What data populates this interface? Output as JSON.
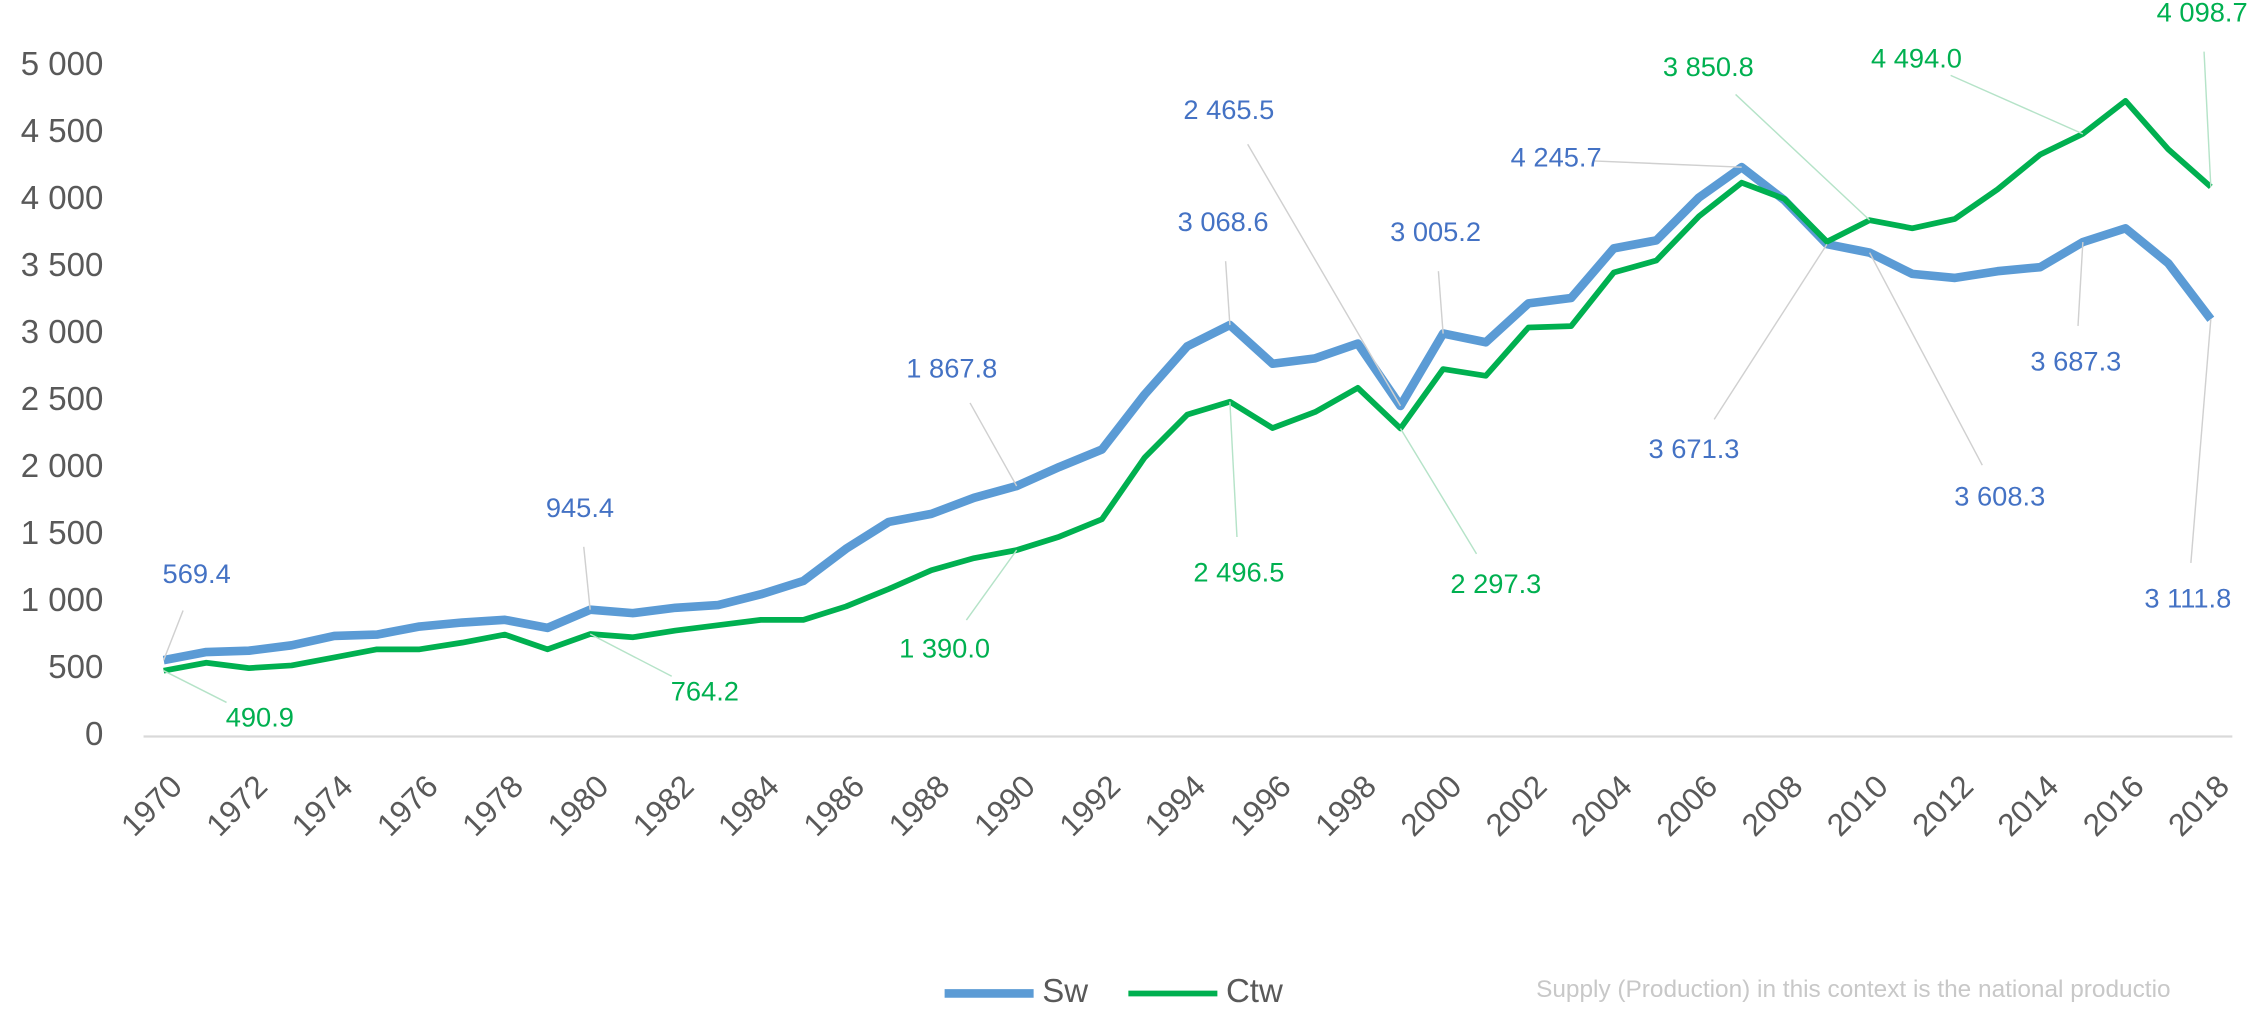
{
  "chart_data": {
    "type": "line",
    "x": [
      1970,
      1971,
      1972,
      1973,
      1974,
      1975,
      1976,
      1977,
      1978,
      1979,
      1980,
      1981,
      1982,
      1983,
      1984,
      1985,
      1986,
      1987,
      1988,
      1989,
      1990,
      1991,
      1992,
      1993,
      1994,
      1995,
      1996,
      1997,
      1998,
      1999,
      2000,
      2001,
      2002,
      2003,
      2004,
      2005,
      2006,
      2007,
      2008,
      2009,
      2010,
      2011,
      2012,
      2013,
      2014,
      2015,
      2016,
      2017,
      2018
    ],
    "xlim": [
      1970,
      2018
    ],
    "xticks": [
      1970,
      1972,
      1974,
      1976,
      1978,
      1980,
      1982,
      1984,
      1986,
      1988,
      1990,
      1992,
      1994,
      1996,
      1998,
      2000,
      2002,
      2004,
      2006,
      2008,
      2010,
      2012,
      2014,
      2016,
      2018
    ],
    "ylim": [
      0,
      5000
    ],
    "yticks": [
      0,
      500,
      {
        "value": 1000,
        "label": "1 000"
      },
      {
        "value": 1500,
        "label": "1 500"
      },
      {
        "value": 2000,
        "label": "2 000"
      },
      {
        "value": 2500,
        "label": "2 500"
      },
      {
        "value": 3000,
        "label": "3 000"
      },
      {
        "value": 3500,
        "label": "3 500"
      },
      {
        "value": 4000,
        "label": "4 000"
      },
      {
        "value": 4500,
        "label": "4 500"
      },
      {
        "value": 5000,
        "label": "5 000"
      }
    ],
    "grid": false,
    "legend": "bottom",
    "series": [
      {
        "name": "Sw",
        "color": "#5b9bd5",
        "label_color": "#4472c4",
        "values": [
          569.4,
          630,
          640,
          680,
          750,
          760,
          820,
          850,
          870,
          810,
          945.4,
          920,
          960,
          980,
          1060,
          1160,
          1400,
          1600,
          1660,
          1780,
          1867.8,
          2010,
          2140,
          2550,
          2910,
          3068.6,
          2780,
          2820,
          2930,
          2465.5,
          3005.2,
          2940,
          3230,
          3270,
          3640,
          3700,
          4020,
          4245.7,
          4000,
          3671.3,
          3608.3,
          3450,
          3420,
          3470,
          3500,
          3687.3,
          3790,
          3530,
          3111.8
        ],
        "value_labels": [
          "569.4",
          null,
          null,
          null,
          null,
          null,
          null,
          null,
          null,
          null,
          "945.4",
          null,
          null,
          null,
          null,
          null,
          null,
          null,
          null,
          null,
          "1 867.8",
          null,
          null,
          null,
          null,
          "3 068.6",
          null,
          null,
          null,
          "2 465.5",
          "3 005.2",
          null,
          null,
          null,
          null,
          null,
          null,
          "4 245.7",
          null,
          "3 671.3",
          "3 608.3",
          null,
          null,
          null,
          null,
          "3 687.3",
          null,
          null,
          "3 111.8"
        ]
      },
      {
        "name": "Ctw",
        "color": "#00b050",
        "label_color": "#00b050",
        "values": [
          490.9,
          550,
          510,
          530,
          590,
          650,
          650,
          700,
          760,
          650,
          764.2,
          740,
          790,
          830,
          870,
          870,
          970,
          1100,
          1240,
          1330,
          1390.0,
          1490,
          1620,
          2080,
          2400,
          2496.5,
          2300,
          2420,
          2600,
          2297.3,
          2740,
          2690,
          3050,
          3060,
          3460,
          3550,
          3880,
          4130,
          4010,
          3690,
          3850.8,
          3790,
          3860,
          4080,
          4340,
          4494.0,
          4740,
          4380,
          4098.7
        ],
        "value_labels": [
          "490.9",
          null,
          null,
          null,
          null,
          null,
          null,
          null,
          null,
          null,
          "764.2",
          null,
          null,
          null,
          null,
          null,
          null,
          null,
          null,
          null,
          "1 390.0",
          null,
          null,
          null,
          null,
          "2 496.5",
          null,
          null,
          null,
          "2 297.3",
          null,
          null,
          null,
          null,
          null,
          null,
          null,
          null,
          null,
          null,
          "3 850.8",
          null,
          null,
          null,
          null,
          "4 494.0",
          null,
          null,
          "4 098.7"
        ]
      }
    ],
    "footnote": "Supply (Production) in this context is the national productio"
  }
}
